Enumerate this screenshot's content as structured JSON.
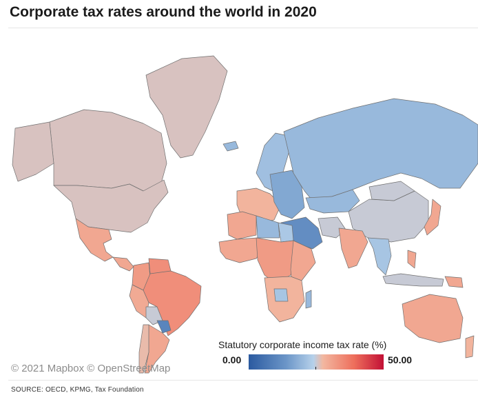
{
  "title": "Corporate tax rates around the world in 2020",
  "attribution": "© 2021 Mapbox © OpenStreetMap",
  "legend": {
    "title": "Statutory corporate income tax rate (%)",
    "min_label": "0.00",
    "max_label": "50.00",
    "min": 0,
    "max": 50,
    "colors": [
      "#2b5aa0",
      "#6c96c8",
      "#b6d1ea",
      "#f2b7a0",
      "#ee6f5c",
      "#c21035"
    ]
  },
  "source": "SOURCE: OECD, KPMG, Tax Foundation",
  "chart_data": {
    "type": "choropleth",
    "title": "Corporate tax rates around the world in 2020",
    "value_label": "Statutory corporate income tax rate (%)",
    "range": [
      0,
      50
    ],
    "regions": [
      {
        "name": "Canada",
        "value": 26
      },
      {
        "name": "United States",
        "value": 26
      },
      {
        "name": "Alaska",
        "value": 26
      },
      {
        "name": "Greenland",
        "value": 26
      },
      {
        "name": "Mexico",
        "value": 30
      },
      {
        "name": "Central America",
        "value": 30
      },
      {
        "name": "Colombia",
        "value": 32
      },
      {
        "name": "Venezuela",
        "value": 34
      },
      {
        "name": "Brazil",
        "value": 34
      },
      {
        "name": "Peru",
        "value": 29.5
      },
      {
        "name": "Bolivia",
        "value": 25
      },
      {
        "name": "Paraguay",
        "value": 10
      },
      {
        "name": "Argentina",
        "value": 30
      },
      {
        "name": "Chile",
        "value": 27
      },
      {
        "name": "Iceland",
        "value": 20
      },
      {
        "name": "Scandinavia",
        "value": 21
      },
      {
        "name": "Western Europe",
        "value": 28
      },
      {
        "name": "Eastern Europe",
        "value": 17
      },
      {
        "name": "Russia",
        "value": 20
      },
      {
        "name": "Kazakhstan",
        "value": 20
      },
      {
        "name": "China",
        "value": 25
      },
      {
        "name": "Mongolia",
        "value": 25
      },
      {
        "name": "Japan",
        "value": 30
      },
      {
        "name": "Middle East",
        "value": 12
      },
      {
        "name": "Iran",
        "value": 25
      },
      {
        "name": "India",
        "value": 30
      },
      {
        "name": "Southeast Asia",
        "value": 22
      },
      {
        "name": "Indonesia",
        "value": 25
      },
      {
        "name": "Philippines",
        "value": 30
      },
      {
        "name": "North Africa",
        "value": 30
      },
      {
        "name": "Libya",
        "value": 20
      },
      {
        "name": "Egypt",
        "value": 22.5
      },
      {
        "name": "West Africa",
        "value": 30
      },
      {
        "name": "Central Africa",
        "value": 32
      },
      {
        "name": "East Africa",
        "value": 30
      },
      {
        "name": "Southern Africa",
        "value": 28
      },
      {
        "name": "Botswana",
        "value": 22
      },
      {
        "name": "Madagascar",
        "value": 20
      },
      {
        "name": "Australia",
        "value": 30
      },
      {
        "name": "New Zealand",
        "value": 28
      },
      {
        "name": "Papua New Guinea",
        "value": 30
      }
    ]
  }
}
